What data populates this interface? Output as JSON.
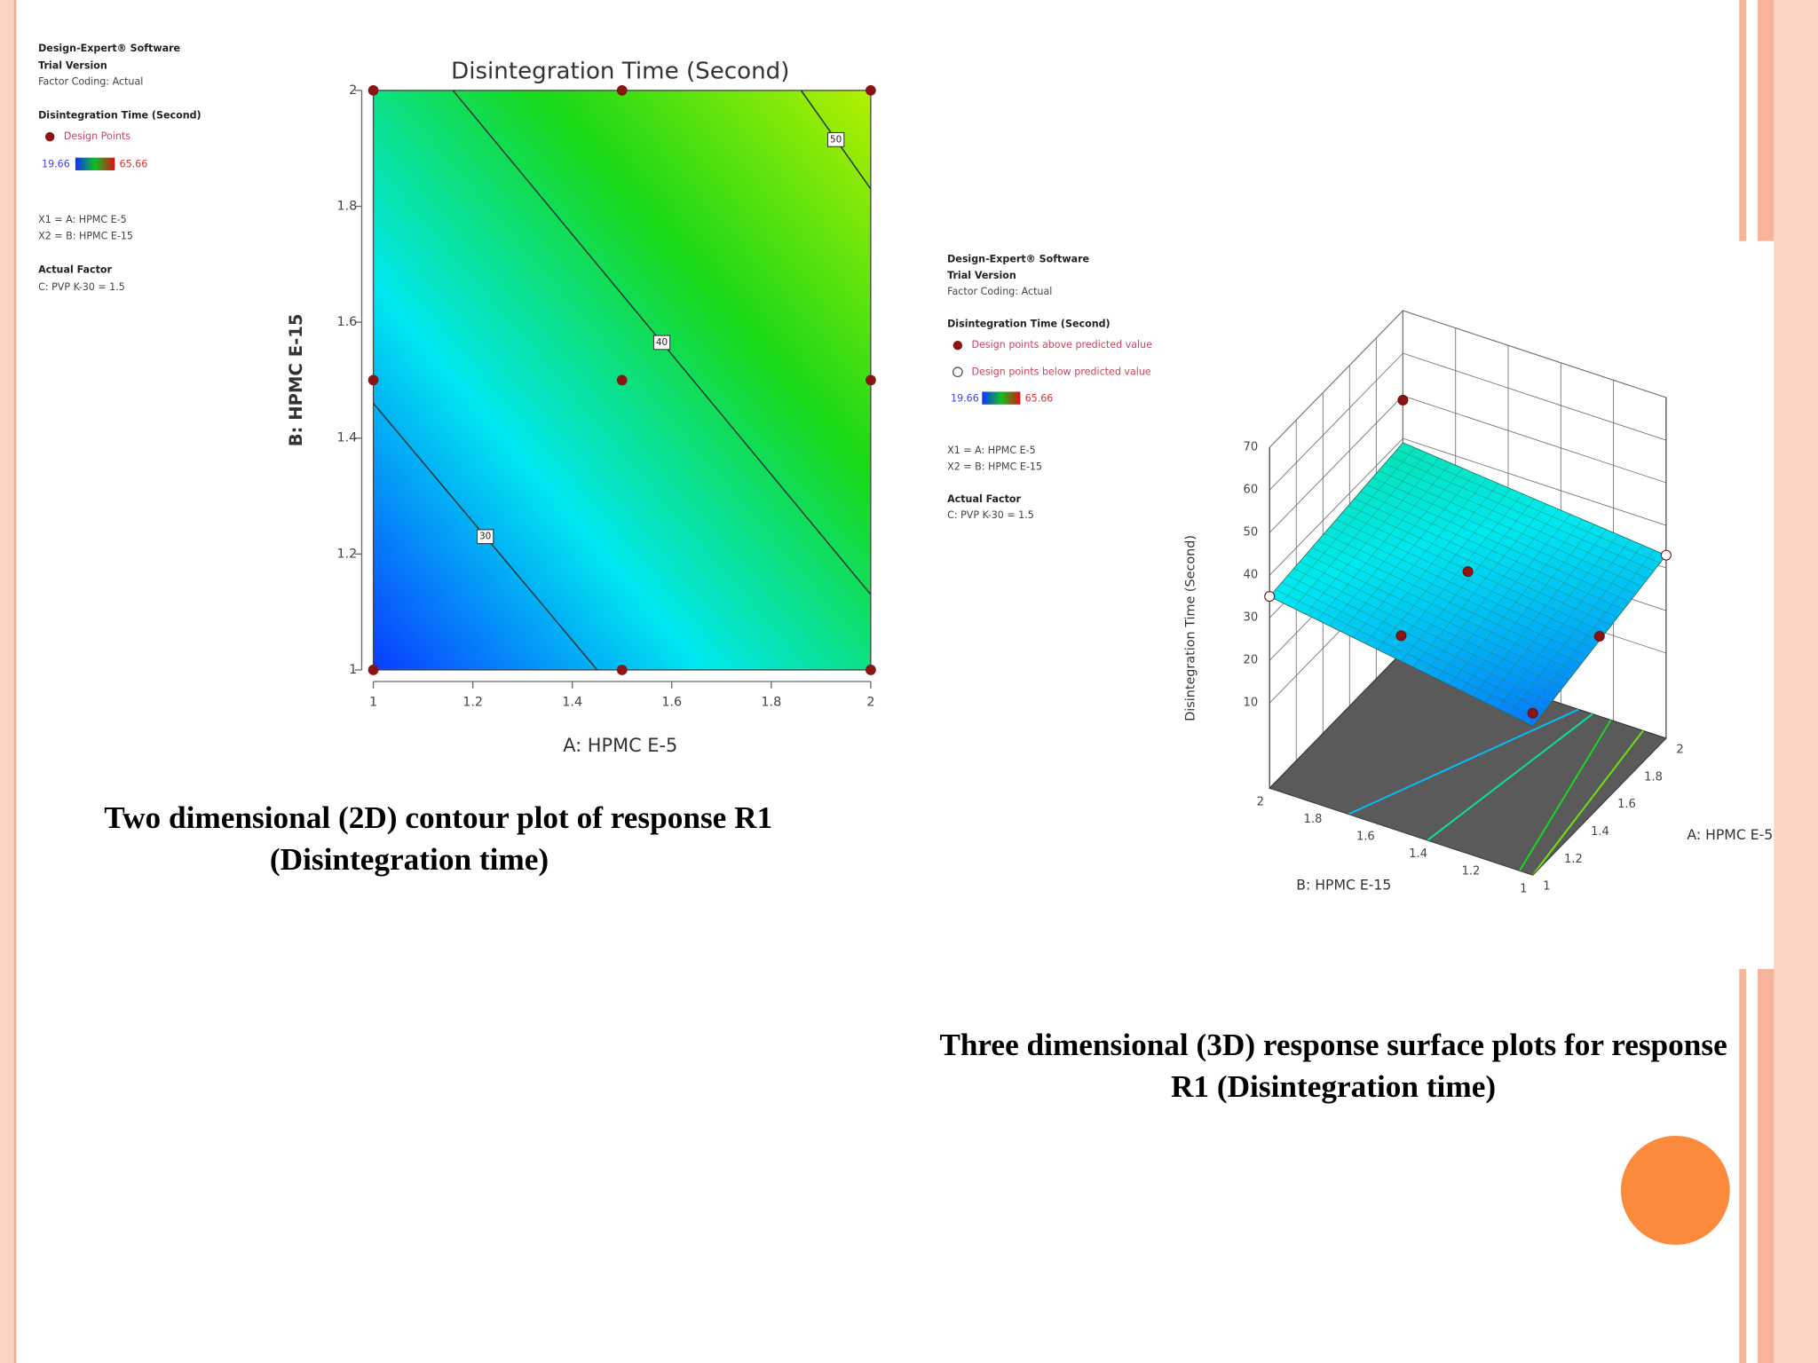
{
  "chart_data": [
    {
      "type": "contour",
      "info": [
        "Design-Expert® Software",
        "Trial Version",
        "Factor Coding: Actual"
      ],
      "legend_title": "Disintegration Time (Second)",
      "design_points_label": "Design Points",
      "colorbar": [
        19.66,
        65.66
      ],
      "factors": [
        "X1 = A: HPMC E-5",
        "X2 = B: HPMC E-15"
      ],
      "actual_factor_title": "Actual Factor",
      "actual_factor": "C: PVP K-30 = 1.5",
      "title": "Disintegration Time  (Second)",
      "xlabel": "A: HPMC E-5",
      "ylabel": "B: HPMC E-15",
      "xlim": [
        1,
        2
      ],
      "ylim": [
        1,
        2
      ],
      "xticks": [
        1,
        1.2,
        1.4,
        1.6,
        1.8,
        2
      ],
      "yticks": [
        1,
        1.2,
        1.4,
        1.6,
        1.8,
        2
      ],
      "contours": [
        {
          "level": 30,
          "x": [
            1,
            1.45
          ],
          "y": [
            1.46,
            1
          ]
        },
        {
          "level": 40,
          "x": [
            1.16,
            2
          ],
          "y": [
            2,
            1.13
          ]
        },
        {
          "level": 50,
          "x": [
            1.86,
            2
          ],
          "y": [
            2,
            1.83
          ]
        }
      ],
      "points": {
        "x": [
          1,
          1.5,
          2,
          1,
          1.5,
          2,
          1,
          1.5,
          2
        ],
        "y": [
          1,
          1,
          1,
          1.5,
          1.5,
          1.5,
          2,
          2,
          2
        ]
      },
      "point_color": "#8b1414",
      "colorscale": [
        "#0a3cff",
        "#00e8f0",
        "#18d818",
        "#b4f000"
      ]
    },
    {
      "type": "surface3d",
      "info": [
        "Design-Expert® Software",
        "Trial Version",
        "Factor Coding: Actual"
      ],
      "legend_title": "Disintegration Time (Second)",
      "above_label": "Design points above predicted value",
      "below_label": "Design points below predicted value",
      "colorbar": [
        19.66,
        65.66
      ],
      "factors": [
        "X1 = A: HPMC E-5",
        "X2 = B: HPMC E-15"
      ],
      "actual_factor_title": "Actual Factor",
      "actual_factor": "C: PVP K-30 = 1.5",
      "xlabel": "A: HPMC E-5",
      "ylabel": "B: HPMC E-15",
      "zlabel": "Disintegration Time  (Second)",
      "xlim": [
        1,
        2
      ],
      "ylim": [
        1,
        2
      ],
      "zlim": [
        -10,
        70
      ],
      "xticks": [
        1,
        1.2,
        1.4,
        1.6,
        1.8,
        2
      ],
      "yticks": [
        1,
        1.2,
        1.4,
        1.6,
        1.8,
        2
      ],
      "zticks": [
        10,
        20,
        30,
        40,
        50,
        60,
        70
      ],
      "surface": {
        "z": [
          [
            25,
            35
          ],
          [
            33,
            39
          ]
        ]
      },
      "points": {
        "x": [
          2,
          1.5,
          1.5,
          1,
          1,
          1,
          2
        ],
        "y": [
          2,
          1.5,
          1,
          1.5,
          1,
          2,
          1
        ],
        "z": [
          49,
          35,
          30,
          36,
          28,
          35,
          33
        ],
        "fills": [
          "#8b1414",
          "#8b1414",
          "#8b1414",
          "#8b1414",
          "#8b1414",
          "#ffffff",
          "#ffffff"
        ]
      },
      "colorscale": [
        "#0a3cff",
        "#00e8f0",
        "#18d818",
        "#b4f000"
      ]
    }
  ],
  "captions": [
    [
      "Two dimensional (2D) contour plot of response R1",
      "(Disintegration time)"
    ],
    [
      "Three dimensional (3D) response surface plots for response",
      "R1 (Disintegration time)"
    ]
  ]
}
